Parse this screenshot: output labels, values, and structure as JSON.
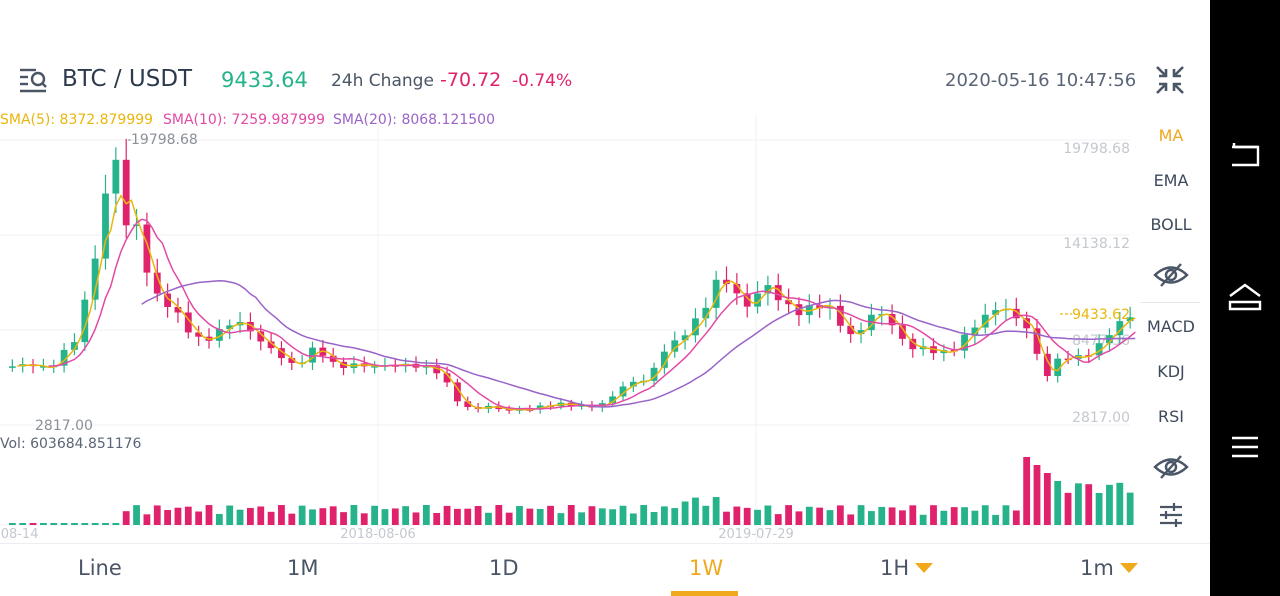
{
  "header": {
    "pair": "BTC / USDT",
    "price": "9433.64",
    "change_label": "24h Change",
    "change_value": "-70.72",
    "change_percent": "-0.74%",
    "datetime": "2020-05-16 10:47:56"
  },
  "sma": {
    "sma5": "SMA(5): 8372.879999",
    "sma10": "SMA(10): 7259.987999",
    "sma20": "SMA(20): 8068.121500"
  },
  "chart_labels": {
    "high_marker": "19798.68",
    "low_marker": "2817.00",
    "current_tag": "9433.62",
    "volume_label": "Vol: 603684.851176"
  },
  "chart_data": {
    "type": "candlestick",
    "interval": "1W",
    "y_ticks": [
      "19798.68",
      "14138.12",
      "8477.56",
      "2817.00"
    ],
    "ylim": [
      2817.0,
      19798.68
    ],
    "x_ticks": [
      "-08-14",
      "2018-08-06",
      "2019-07-29"
    ],
    "colors": {
      "up": "#26b38c",
      "down": "#e0216b",
      "sma5": "#e8b70c",
      "sma10": "#e24aa6",
      "sma20": "#9a63c8"
    },
    "series": [
      {
        "name": "SMA(5)",
        "value": 8372.879999
      },
      {
        "name": "SMA(10)",
        "value": 7259.987999
      },
      {
        "name": "SMA(20)",
        "value": 8068.1215
      }
    ],
    "volume": 603684.851176
  },
  "indicators": {
    "main": [
      "MA",
      "EMA",
      "BOLL"
    ],
    "sub": [
      "MACD",
      "KDJ",
      "RSI"
    ],
    "active": "MA"
  },
  "tabs": [
    "Line",
    "1M",
    "1D",
    "1W",
    "1H",
    "1m"
  ],
  "active_tab": "1W",
  "icons": [
    "list-search-icon",
    "collapse-icon",
    "eye-icon",
    "settings-sliders-icon",
    "back-icon",
    "home-icon",
    "menu-icon"
  ]
}
